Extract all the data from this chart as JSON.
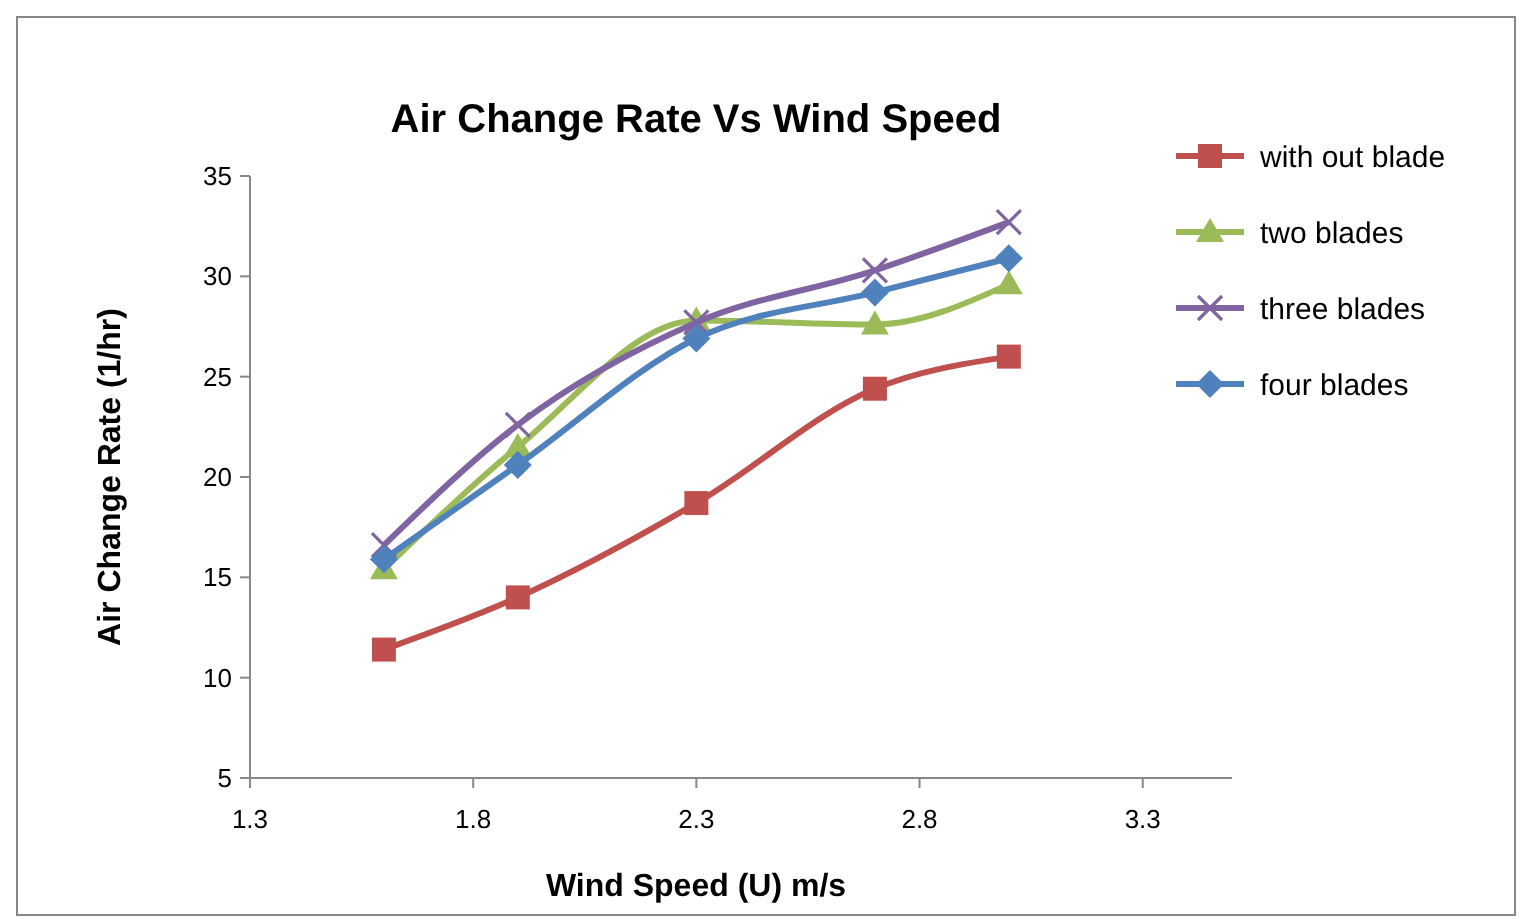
{
  "chart_data": {
    "type": "line",
    "title": "Air Change Rate Vs Wind Speed",
    "xlabel": "Wind Speed (U) m/s",
    "ylabel": "Air Change Rate (1/hr)",
    "x": [
      1.6,
      1.9,
      2.3,
      2.7,
      3.0
    ],
    "xlim": [
      1.3,
      3.5
    ],
    "xticks": [
      1.3,
      1.8,
      2.3,
      2.8,
      3.3
    ],
    "ylim": [
      5,
      35
    ],
    "yticks": [
      5,
      10,
      15,
      20,
      25,
      30,
      35
    ],
    "grid": false,
    "legend": "right",
    "series": [
      {
        "name": "with out blade",
        "color": "#c0504d",
        "marker": "square",
        "values": [
          11.4,
          14.0,
          18.7,
          24.4,
          26.0
        ]
      },
      {
        "name": "two blades",
        "color": "#9bbb59",
        "marker": "triangle",
        "values": [
          15.4,
          21.5,
          27.8,
          27.6,
          29.6
        ]
      },
      {
        "name": "three blades",
        "color": "#8064a2",
        "marker": "cross",
        "values": [
          16.6,
          22.6,
          27.7,
          30.3,
          32.7
        ]
      },
      {
        "name": "four blades",
        "color": "#4f81bd",
        "marker": "diamond",
        "values": [
          15.9,
          20.6,
          26.9,
          29.2,
          30.9
        ]
      }
    ]
  }
}
